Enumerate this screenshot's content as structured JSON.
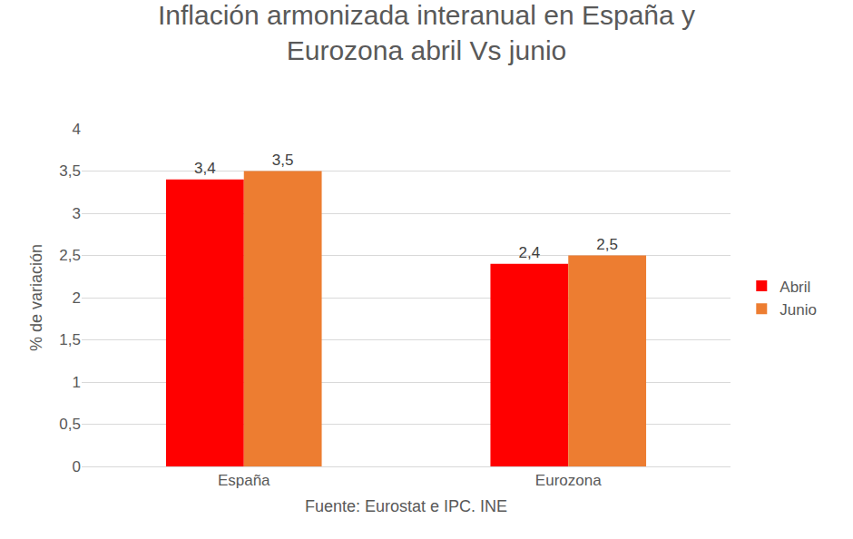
{
  "chart_data": {
    "type": "bar",
    "title": "Inflación armonizada interanual en España y Eurozona abril Vs junio",
    "x_label": "Fuente: Eurostat e IPC. INE",
    "y_label": "% de variación",
    "categories": [
      "España",
      "Eurozona"
    ],
    "series": [
      {
        "name": "Abril",
        "color": "#ff0000",
        "values": [
          3.4,
          2.4
        ],
        "value_labels": [
          "3,4",
          "2,4"
        ]
      },
      {
        "name": "Junio",
        "color": "#ed7d31",
        "values": [
          3.5,
          2.5
        ],
        "value_labels": [
          "3,5",
          "2,5"
        ]
      }
    ],
    "ylim": [
      0,
      4
    ],
    "yticks": [
      0,
      {
        "value": 0.5,
        "label": "0,5"
      },
      1,
      {
        "value": 1.5,
        "label": "1,5"
      },
      2,
      {
        "value": 2.5,
        "label": "2,5"
      },
      3,
      {
        "value": 3.5,
        "label": "3,5"
      },
      4
    ],
    "grid": true,
    "legend": "right",
    "data_labels": true
  }
}
